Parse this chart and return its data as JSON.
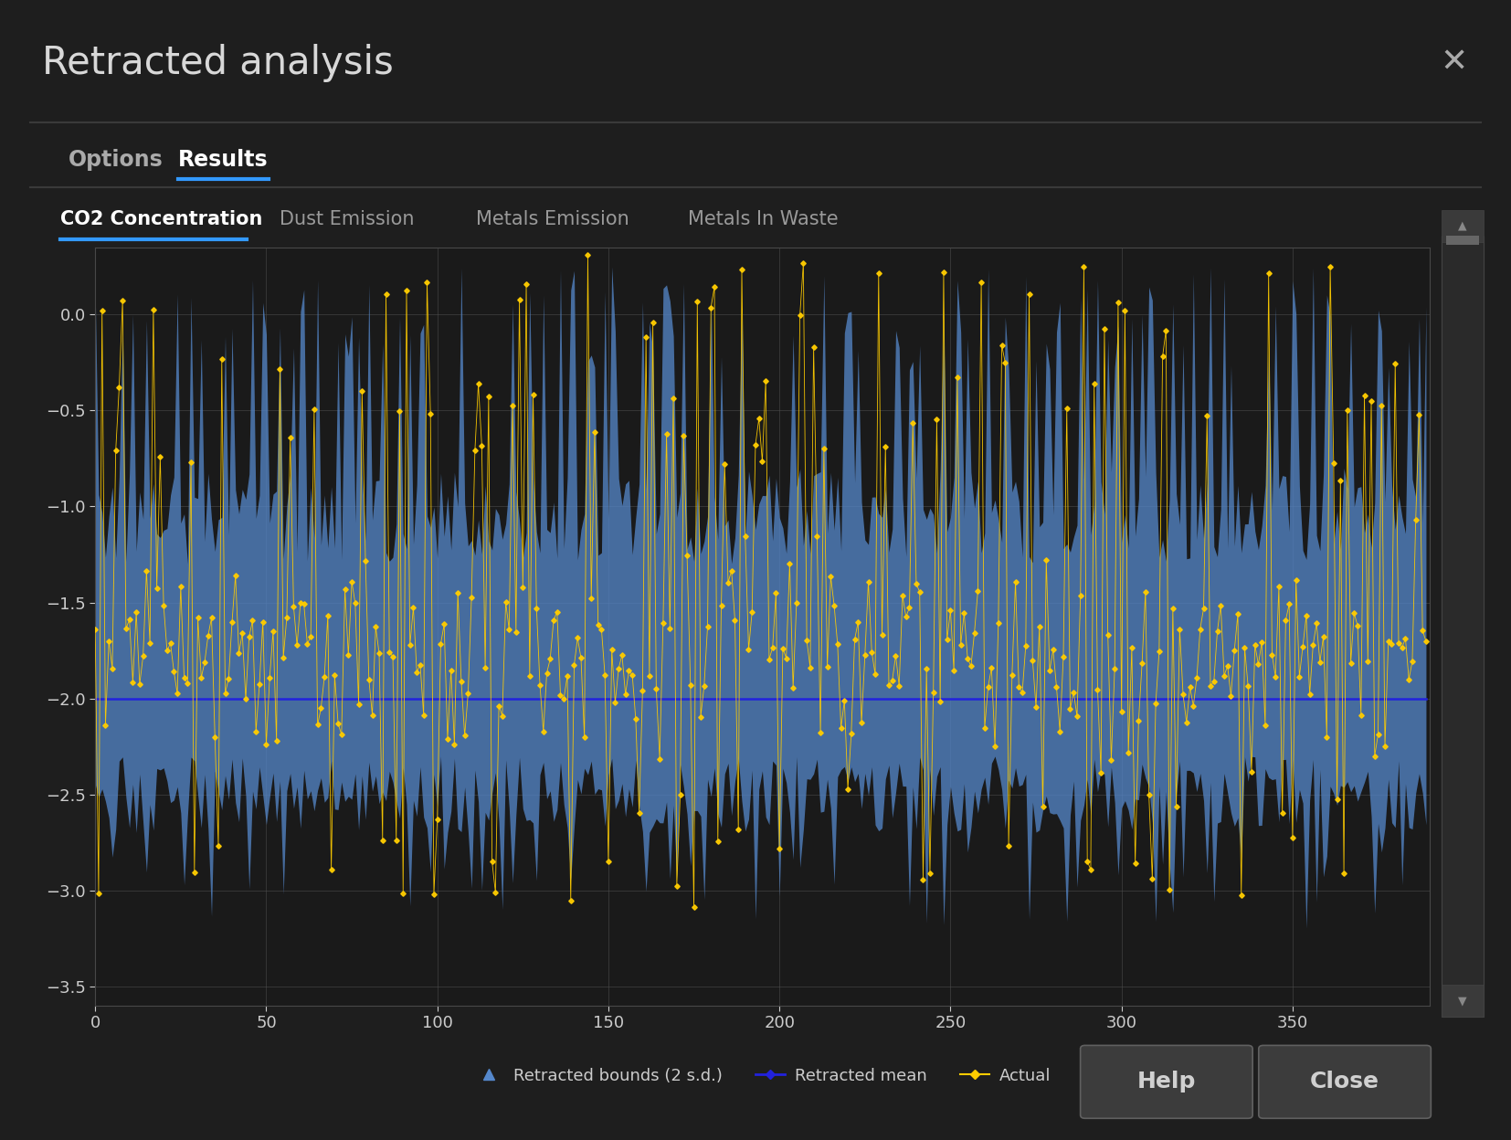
{
  "title": "Retracted analysis",
  "tab_options": "Options",
  "tab_results": "Results",
  "tabs_chart": [
    "CO2 Concentration",
    "Dust Emission",
    "Metals Emission",
    "Metals In Waste"
  ],
  "background_color": "#1e1e1e",
  "text_color": "#cccccc",
  "plot_bg_color": "#1a1a1a",
  "grid_color": "#505050",
  "mean_color": "#2222dd",
  "bounds_color": "#5588cc",
  "actual_color": "#ffcc00",
  "mean_linewidth": 1.8,
  "ylim": [
    -3.6,
    0.35
  ],
  "xlim": [
    0,
    390
  ],
  "yticks": [
    0,
    -0.5,
    -1.0,
    -1.5,
    -2.0,
    -2.5,
    -3.0,
    -3.5
  ],
  "xticks": [
    0,
    50,
    100,
    150,
    200,
    250,
    300,
    350
  ],
  "n_points": 390,
  "mean_value": -2.0,
  "legend_labels": [
    "Retracted bounds (2 s.d.)",
    "Retracted mean",
    "Actual"
  ],
  "button_color": "#3a3a3a",
  "button_text_color": "#cccccc",
  "scrollbar_bg": "#2e2e2e",
  "scrollbar_thumb": "#666666"
}
